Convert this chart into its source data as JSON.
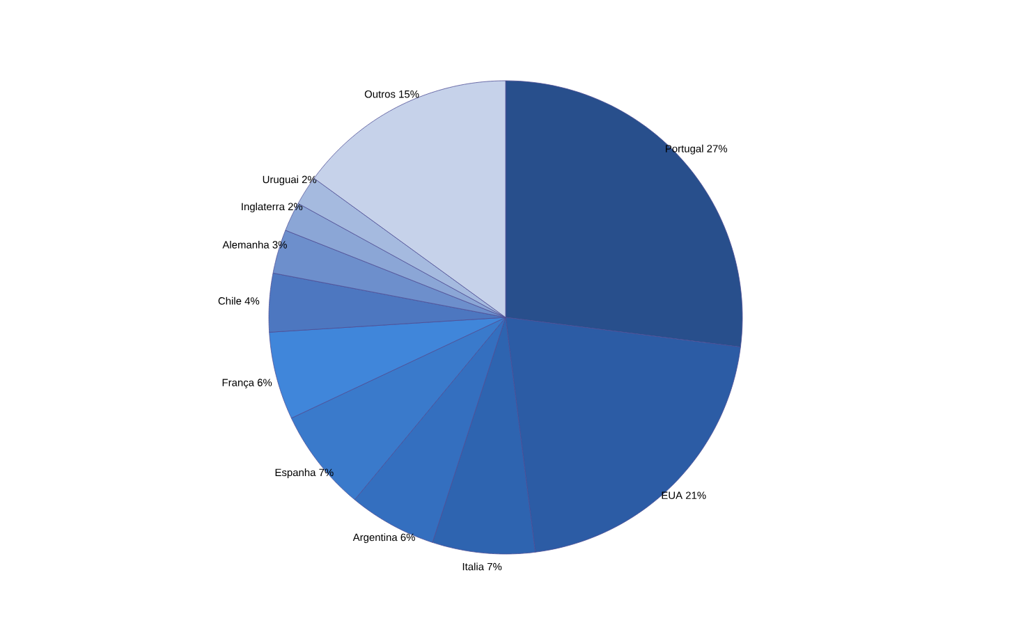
{
  "chart_data": {
    "type": "pie",
    "categories": [
      "Portugal",
      "EUA",
      "Italia",
      "Argentina",
      "Espanha",
      "França",
      "Chile",
      "Alemanha",
      "Inglaterra",
      "Uruguai",
      "Outros"
    ],
    "values": [
      27,
      21,
      7,
      6,
      7,
      6,
      4,
      3,
      2,
      2,
      15
    ],
    "value_labels": [
      "27%",
      "21%",
      "7%",
      "6%",
      "7%",
      "6%",
      "4%",
      "3%",
      "2%",
      "2%",
      "15%"
    ],
    "colors": [
      "#284f8c",
      "#2c5ca5",
      "#2e64b0",
      "#346fbf",
      "#3a7acb",
      "#4086da",
      "#4d77c0",
      "#6d8fcc",
      "#8ba6d6",
      "#a5badf",
      "#c6d2ea"
    ]
  }
}
